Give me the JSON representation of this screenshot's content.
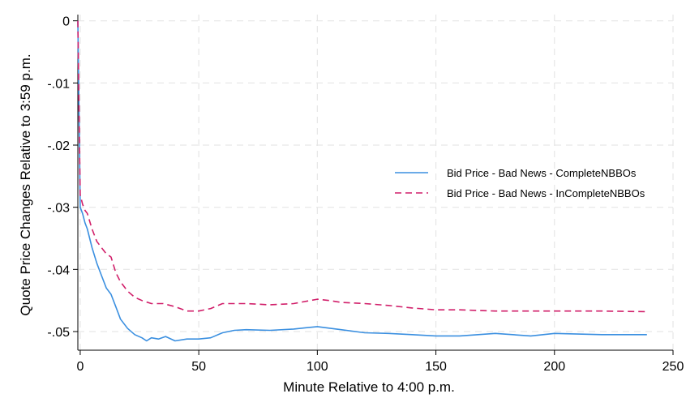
{
  "chart_data": {
    "type": "line",
    "title": "",
    "xlabel": "Minute Relative to 4:00 p.m.",
    "ylabel": "Quote Price Changes Relative to 3:59 p.m.",
    "xlim": [
      -1,
      250
    ],
    "ylim": [
      -0.053,
      0.001
    ],
    "xticks": [
      0,
      50,
      100,
      150,
      200,
      250
    ],
    "xtick_labels": [
      "0",
      "50",
      "100",
      "150",
      "200",
      "250"
    ],
    "yticks": [
      0,
      -0.01,
      -0.02,
      -0.03,
      -0.04,
      -0.05
    ],
    "ytick_labels": [
      "0",
      "-.01",
      "-.02",
      "-.03",
      "-.04",
      "-.05"
    ],
    "grid": true,
    "legend_position": "right",
    "series": [
      {
        "name": "Bid Price - Bad News - CompleteNBBOs",
        "color": "#3a8fe0",
        "style": "solid",
        "x": [
          -1,
          0,
          1,
          2,
          3,
          5,
          7,
          9,
          11,
          13,
          15,
          17,
          20,
          23,
          26,
          28,
          30,
          33,
          36,
          40,
          45,
          50,
          55,
          60,
          65,
          70,
          80,
          90,
          100,
          110,
          120,
          130,
          140,
          150,
          160,
          175,
          190,
          200,
          220,
          239
        ],
        "values": [
          0,
          -0.03,
          -0.031,
          -0.0325,
          -0.0335,
          -0.0365,
          -0.039,
          -0.041,
          -0.043,
          -0.044,
          -0.046,
          -0.048,
          -0.0495,
          -0.0505,
          -0.051,
          -0.0515,
          -0.051,
          -0.0512,
          -0.0508,
          -0.0515,
          -0.0512,
          -0.0512,
          -0.051,
          -0.0502,
          -0.0498,
          -0.0497,
          -0.0498,
          -0.0496,
          -0.0492,
          -0.0497,
          -0.0502,
          -0.0503,
          -0.0505,
          -0.0507,
          -0.0507,
          -0.0503,
          -0.0507,
          -0.0503,
          -0.0505,
          -0.0505
        ]
      },
      {
        "name": "Bid Price - Bad News - InCompleteNBBOs",
        "color": "#d11f6a",
        "style": "dashed",
        "x": [
          -1,
          0,
          1,
          2,
          3,
          5,
          7,
          9,
          11,
          13,
          15,
          17,
          20,
          23,
          26,
          30,
          35,
          40,
          45,
          50,
          55,
          60,
          65,
          70,
          80,
          90,
          100,
          105,
          110,
          120,
          130,
          140,
          150,
          160,
          175,
          190,
          200,
          220,
          239
        ],
        "values": [
          0,
          -0.028,
          -0.0295,
          -0.0305,
          -0.031,
          -0.0335,
          -0.0355,
          -0.0365,
          -0.0375,
          -0.038,
          -0.0405,
          -0.042,
          -0.0435,
          -0.0445,
          -0.045,
          -0.0455,
          -0.0455,
          -0.046,
          -0.0467,
          -0.0467,
          -0.0463,
          -0.0455,
          -0.0455,
          -0.0455,
          -0.0457,
          -0.0455,
          -0.0448,
          -0.045,
          -0.0453,
          -0.0455,
          -0.0458,
          -0.0462,
          -0.0465,
          -0.0465,
          -0.0467,
          -0.0467,
          -0.0467,
          -0.0467,
          -0.0468
        ]
      }
    ]
  }
}
